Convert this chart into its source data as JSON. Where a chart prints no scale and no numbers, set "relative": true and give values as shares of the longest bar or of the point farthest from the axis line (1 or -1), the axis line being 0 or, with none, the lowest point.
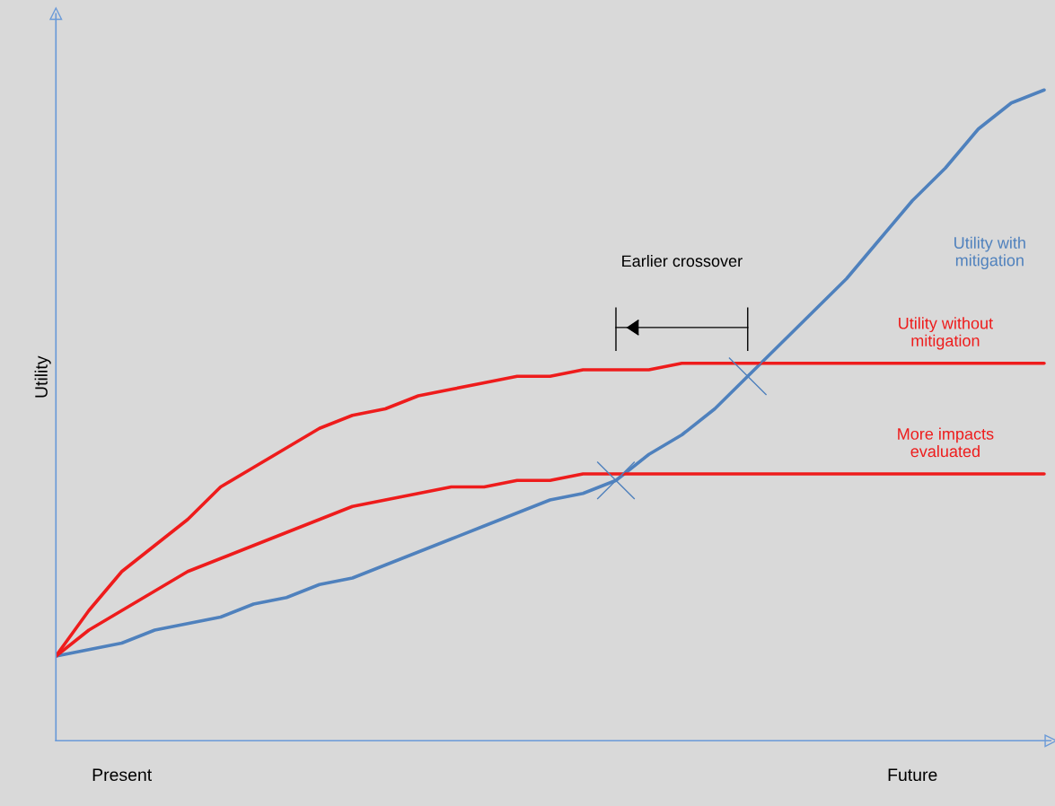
{
  "chart_data": {
    "type": "line",
    "relative": true,
    "ylabel": "Utility",
    "categories": [
      null,
      null,
      "Present",
      null,
      null,
      null,
      null,
      null,
      null,
      null,
      null,
      null,
      null,
      null,
      null,
      null,
      null,
      null,
      null,
      null,
      null,
      null,
      null,
      null,
      null,
      null,
      "Future",
      null,
      null,
      null,
      null
    ],
    "annotations": [
      "Earlier crossover"
    ],
    "series": [
      {
        "name": "Utility with mitigation",
        "color": "#4f81bd",
        "values": [
          0.13,
          0.14,
          0.15,
          0.17,
          0.18,
          0.19,
          0.21,
          0.22,
          0.24,
          0.25,
          0.27,
          0.29,
          0.31,
          0.33,
          0.35,
          0.37,
          0.38,
          0.4,
          0.44,
          0.47,
          0.51,
          0.56,
          0.61,
          0.66,
          0.71,
          0.77,
          0.83,
          0.88,
          0.94,
          0.98,
          1.0
        ]
      },
      {
        "name": "Utility without mitigation",
        "color": "#ee1c1c",
        "values": [
          0.13,
          0.2,
          0.26,
          0.3,
          0.34,
          0.39,
          0.42,
          0.45,
          0.48,
          0.5,
          0.51,
          0.53,
          0.54,
          0.55,
          0.56,
          0.56,
          0.57,
          0.57,
          0.57,
          0.58,
          0.58,
          0.58,
          0.58,
          0.58,
          0.58,
          0.58,
          0.58,
          0.58,
          0.58,
          0.58,
          0.58
        ]
      },
      {
        "name": "More impacts evaluated",
        "color": "#ee1c1c",
        "values": [
          0.13,
          0.17,
          0.2,
          0.23,
          0.26,
          0.28,
          0.3,
          0.32,
          0.34,
          0.36,
          0.37,
          0.38,
          0.39,
          0.39,
          0.4,
          0.4,
          0.41,
          0.41,
          0.41,
          0.41,
          0.41,
          0.41,
          0.41,
          0.41,
          0.41,
          0.41,
          0.41,
          0.41,
          0.41,
          0.41,
          0.41
        ]
      },
      {
        "type": "scatter",
        "marker": "cross",
        "color": "#4f81bd",
        "values": [
          null,
          null,
          null,
          null,
          null,
          null,
          null,
          null,
          null,
          null,
          null,
          null,
          null,
          null,
          null,
          null,
          null,
          0.4,
          null,
          null,
          null,
          0.56,
          null,
          null,
          null,
          null,
          null,
          null,
          null,
          null,
          null
        ]
      }
    ]
  }
}
